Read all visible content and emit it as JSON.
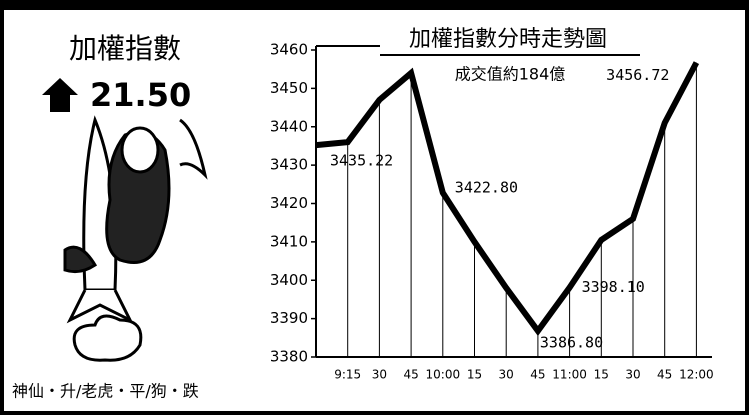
{
  "panel": {
    "title": "加權指數",
    "change": "21.50",
    "legend": "神仙・升/老虎・平/狗・跌"
  },
  "chart_data": {
    "type": "line",
    "title": "加權指數分時走勢圖",
    "annotation": "成交值約184億",
    "categories": [
      null,
      "9:15",
      "30",
      "45",
      "10:00",
      "15",
      "30",
      "45",
      "11:00",
      "15",
      "30",
      "45",
      "12:00"
    ],
    "values": [
      3435.22,
      3436,
      3447,
      3454,
      3422.8,
      3410,
      3398,
      3386.8,
      3398.1,
      3410.5,
      3416,
      3441,
      3456.72
    ],
    "value_labels": [
      "3435.22",
      null,
      null,
      null,
      "3422.80",
      null,
      null,
      "3386.80",
      "3398.10",
      null,
      null,
      null,
      "3456.72"
    ],
    "color": "#000000",
    "ylim": [
      3380,
      3460
    ],
    "yticks": [
      3380,
      3390,
      3400,
      3410,
      3420,
      3430,
      3440,
      3450,
      3460
    ]
  }
}
